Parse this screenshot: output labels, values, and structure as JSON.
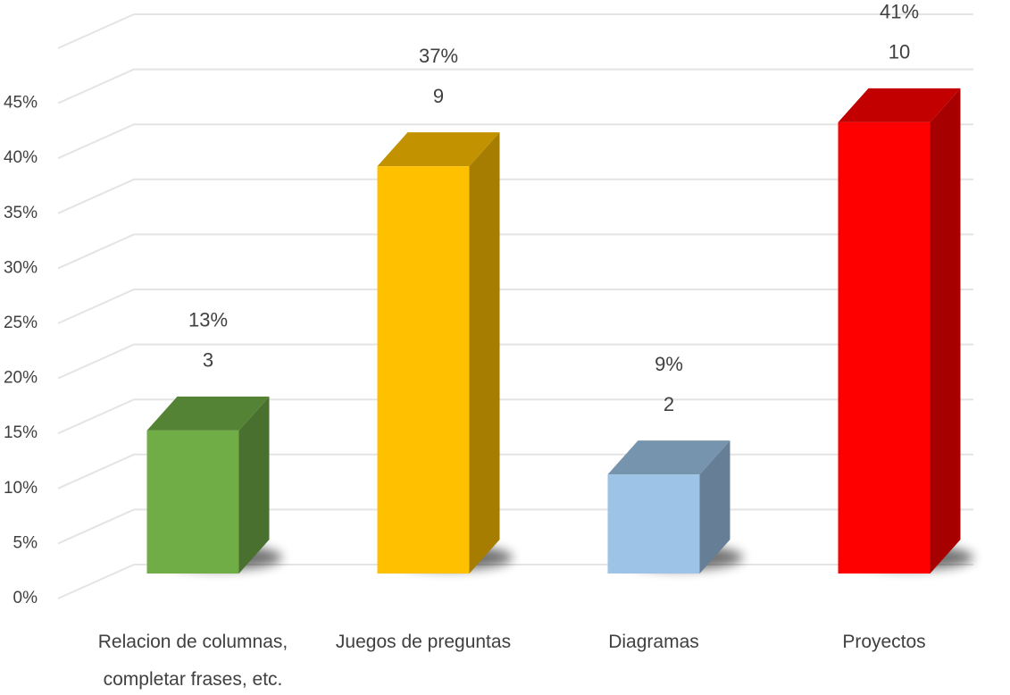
{
  "chart_data": {
    "type": "bar3d",
    "categories": [
      "Relacion de columnas, completar frases, etc.",
      "Juegos de preguntas",
      "Diagramas",
      "Proyectos"
    ],
    "values": [
      13,
      37,
      9,
      41
    ],
    "value_labels": [
      "13%",
      "37%",
      "9%",
      "41%"
    ],
    "counts": [
      3,
      9,
      2,
      10
    ],
    "colors": [
      "#70ad47",
      "#ffc000",
      "#9dc3e6",
      "#ff0000"
    ],
    "ylim": [
      0,
      50
    ],
    "yticks": [
      {
        "value": 0,
        "label": "0%"
      },
      {
        "value": 5,
        "label": "5%"
      },
      {
        "value": 10,
        "label": "10%"
      },
      {
        "value": 15,
        "label": "15%"
      },
      {
        "value": 20,
        "label": "20%"
      },
      {
        "value": 25,
        "label": "25%"
      },
      {
        "value": 30,
        "label": "30%"
      },
      {
        "value": 35,
        "label": "35%"
      },
      {
        "value": 40,
        "label": "40%"
      },
      {
        "value": 45,
        "label": "45%"
      }
    ],
    "grid": true
  }
}
